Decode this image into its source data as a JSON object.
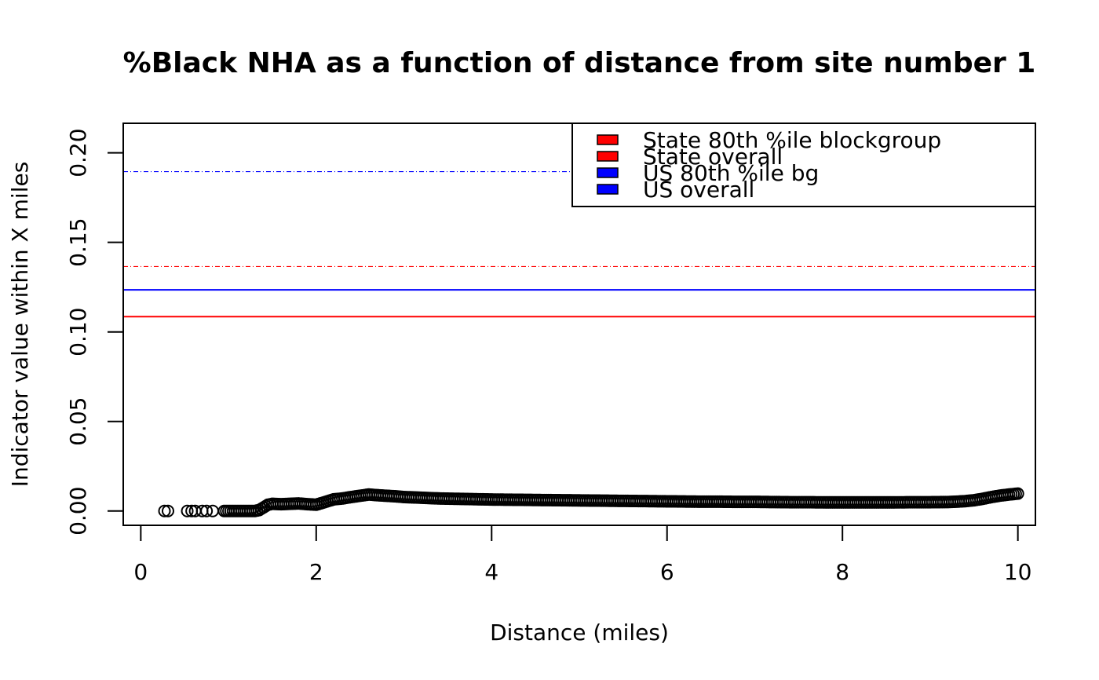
{
  "chart_data": {
    "type": "scatter",
    "title": "%Black NHA as a function of distance from site number 1",
    "xlabel": "Distance (miles)",
    "ylabel": "Indicator value within X miles",
    "xlim": [
      -0.2,
      10.2
    ],
    "ylim": [
      -0.008,
      0.2165
    ],
    "x_ticks": [
      0,
      2,
      4,
      6,
      8,
      10
    ],
    "x_tick_labels": [
      "0",
      "2",
      "4",
      "6",
      "8",
      "10"
    ],
    "y_ticks": [
      0.0,
      0.05,
      0.1,
      0.15,
      0.2
    ],
    "y_tick_labels": [
      "0.00",
      "0.05",
      "0.10",
      "0.15",
      "0.20"
    ],
    "grid": false,
    "legend_position": "top-right",
    "reference_lines": [
      {
        "name": "State 80th %ile blockgroup",
        "y": 0.1365,
        "color": "#ff0000",
        "style": "dotdash"
      },
      {
        "name": "State overall",
        "y": 0.1085,
        "color": "#ff0000",
        "style": "solid"
      },
      {
        "name": "US 80th %ile bg",
        "y": 0.1895,
        "color": "#0000ff",
        "style": "dotdash"
      },
      {
        "name": "US overall",
        "y": 0.1235,
        "color": "#0000ff",
        "style": "solid"
      }
    ],
    "legend": [
      {
        "label": "State 80th %ile blockgroup",
        "color": "#ff0000"
      },
      {
        "label": "State overall",
        "color": "#ff0000"
      },
      {
        "label": "US 80th %ile bg",
        "color": "#0000ff"
      },
      {
        "label": "US overall",
        "color": "#0000ff"
      }
    ],
    "series": [
      {
        "marker": "open-circle",
        "x": [
          0.27,
          0.31,
          0.53,
          0.58,
          0.62,
          0.7,
          0.75,
          0.82,
          0.95,
          1.0,
          1.05,
          1.1,
          1.15,
          1.2,
          1.25,
          1.3,
          1.35,
          1.4,
          1.45,
          1.5,
          1.6,
          1.7,
          1.8,
          1.9,
          2.0,
          2.1,
          2.2,
          2.3,
          2.4,
          2.5,
          2.6,
          2.7,
          2.8,
          2.9,
          3.0,
          3.2,
          3.4,
          3.6,
          3.8,
          4.0,
          4.2,
          4.4,
          4.6,
          4.8,
          5.0,
          5.2,
          5.4,
          5.6,
          5.8,
          6.0,
          6.2,
          6.4,
          6.6,
          6.8,
          7.0,
          7.2,
          7.4,
          7.6,
          7.8,
          8.0,
          8.2,
          8.4,
          8.6,
          8.8,
          9.0,
          9.2,
          9.3,
          9.4,
          9.5,
          9.6,
          9.7,
          9.8,
          9.9,
          10.0
        ],
        "y": [
          0.0,
          0.0,
          0.0,
          0.0,
          0.0,
          0.0,
          0.0,
          0.0,
          0.0,
          0.0,
          0.0,
          0.0,
          0.0,
          0.0,
          0.0,
          0.0,
          0.0005,
          0.002,
          0.0035,
          0.004,
          0.0038,
          0.004,
          0.0042,
          0.0038,
          0.0035,
          0.005,
          0.0065,
          0.007,
          0.0078,
          0.0085,
          0.0092,
          0.0088,
          0.0085,
          0.0082,
          0.0078,
          0.0074,
          0.007,
          0.0068,
          0.0066,
          0.0064,
          0.0063,
          0.0062,
          0.0061,
          0.006,
          0.0059,
          0.0058,
          0.0057,
          0.0056,
          0.0055,
          0.0054,
          0.0053,
          0.0052,
          0.0052,
          0.0051,
          0.0051,
          0.005,
          0.0049,
          0.0049,
          0.0048,
          0.0048,
          0.0048,
          0.0048,
          0.0048,
          0.0049,
          0.0049,
          0.005,
          0.0052,
          0.0055,
          0.006,
          0.0068,
          0.0078,
          0.0086,
          0.0092,
          0.0097
        ]
      }
    ]
  }
}
